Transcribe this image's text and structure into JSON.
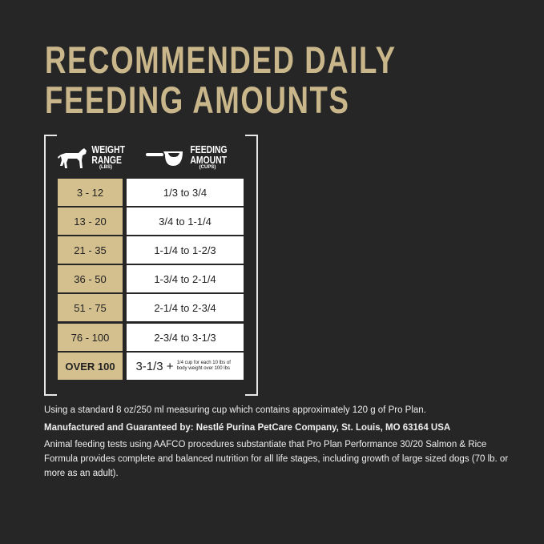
{
  "title": {
    "line1": "RECOMMENDED DAILY",
    "line2": "FEEDING AMOUNTS"
  },
  "table": {
    "col1": {
      "label1": "WEIGHT",
      "label2": "RANGE",
      "unit": "(LBS)",
      "icon": "dog-icon"
    },
    "col2": {
      "label1": "FEEDING",
      "label2": "AMOUNT",
      "unit": "(CUPS)",
      "icon": "measuring-cup-icon"
    },
    "rows": [
      {
        "weight": "3 - 12",
        "amount": "1/3 to 3/4"
      },
      {
        "weight": "13 - 20",
        "amount": "3/4 to 1-1/4"
      },
      {
        "weight": "21 - 35",
        "amount": "1-1/4 to 1-2/3"
      },
      {
        "weight": "36 - 50",
        "amount": "1-3/4 to 2-1/4"
      },
      {
        "weight": "51 - 75",
        "amount": "2-1/4 to 2-3/4"
      },
      {
        "weight": "76 - 100",
        "amount": "2-3/4 to 3-1/3"
      },
      {
        "weight": "OVER 100",
        "amount": "3-1/3 +",
        "note": "1/4 cup for each 10 lbs of body weight over 100 lbs"
      }
    ]
  },
  "notes": {
    "cup": "Using a standard 8 oz/250 ml measuring cup which contains approximately 120 g of Pro Plan.",
    "manufacturer": "Manufactured and Guaranteed by: Nestlé Purina PetCare Company, St. Louis, MO 63164 USA",
    "aafco": "Animal feeding tests using AAFCO procedures substantiate that Pro Plan Performance 30/20 Salmon & Rice Formula provides complete and balanced nutrition for all life stages, including growth of large sized dogs (70 lb. or more as an adult)."
  },
  "colors": {
    "background": "#262626",
    "accent": "#c9b68a",
    "cell": "#d4bf8e"
  }
}
